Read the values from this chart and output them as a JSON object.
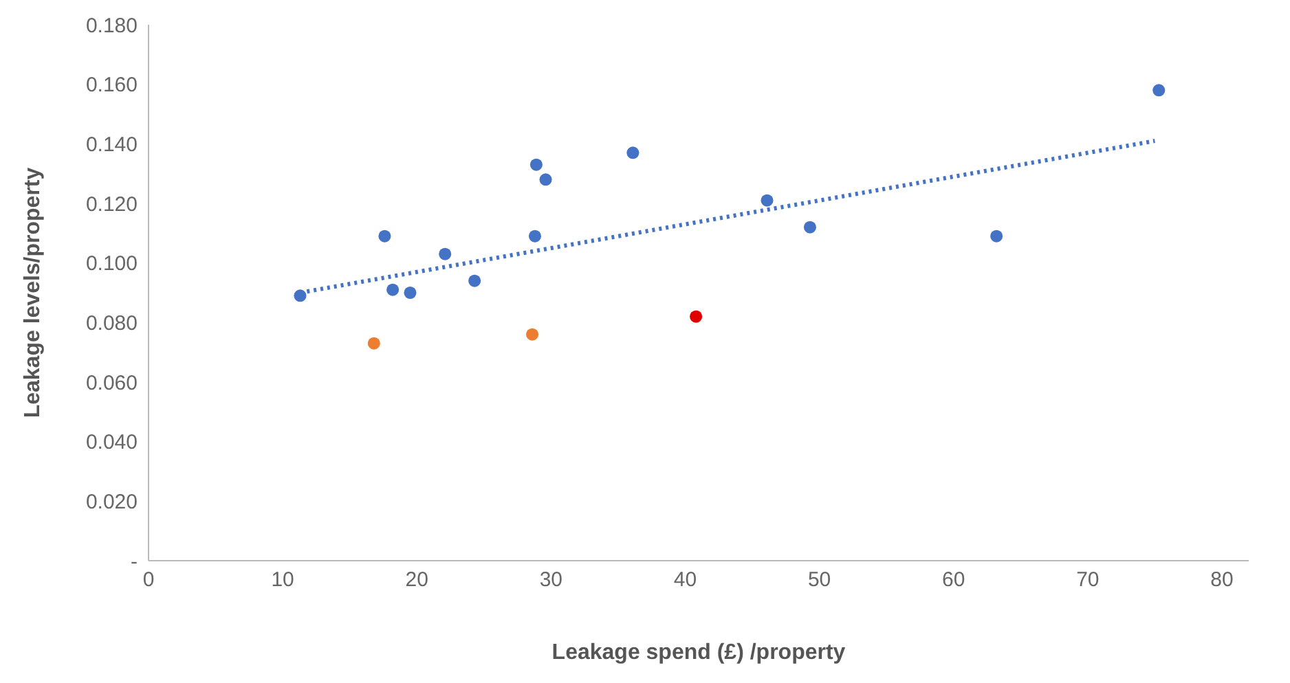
{
  "chart_data": {
    "type": "scatter",
    "xlabel": "Leakage spend (£) /property",
    "ylabel": "Leakage levels/property",
    "xlim": [
      0,
      82
    ],
    "xticks": [
      0,
      10,
      20,
      30,
      40,
      50,
      60,
      70,
      80
    ],
    "ylim": [
      0,
      0.18
    ],
    "yticks": [
      {
        "value": 0,
        "label": "-"
      },
      {
        "value": 0.02,
        "label": "0.020"
      },
      {
        "value": 0.04,
        "label": "0.040"
      },
      {
        "value": 0.06,
        "label": "0.060"
      },
      {
        "value": 0.08,
        "label": "0.080"
      },
      {
        "value": 0.1,
        "label": "0.100"
      },
      {
        "value": 0.12,
        "label": "0.120"
      },
      {
        "value": 0.14,
        "label": "0.140"
      },
      {
        "value": 0.16,
        "label": "0.160"
      },
      {
        "value": 0.18,
        "label": "0.180"
      }
    ],
    "grid": false,
    "series": [
      {
        "type": "line",
        "color": "#4472c4",
        "line_style": "dotted",
        "marker": "none",
        "x": [
          11.3,
          75.0
        ],
        "values": [
          0.09,
          0.141
        ]
      },
      {
        "color": "#4472c4",
        "x": [
          11.3,
          17.6,
          18.2,
          19.5,
          22.1,
          24.3,
          28.9,
          29.6,
          28.8,
          36.1,
          46.1,
          49.3,
          63.2,
          75.3
        ],
        "values": [
          0.089,
          0.109,
          0.091,
          0.09,
          0.103,
          0.094,
          0.133,
          0.128,
          0.109,
          0.137,
          0.121,
          0.112,
          0.109,
          0.158
        ]
      },
      {
        "color": "#ed7d31",
        "x": [
          16.8,
          28.6
        ],
        "values": [
          0.073,
          0.076
        ]
      },
      {
        "color": "#e00000",
        "x": [
          40.8
        ],
        "values": [
          0.082
        ]
      }
    ]
  }
}
